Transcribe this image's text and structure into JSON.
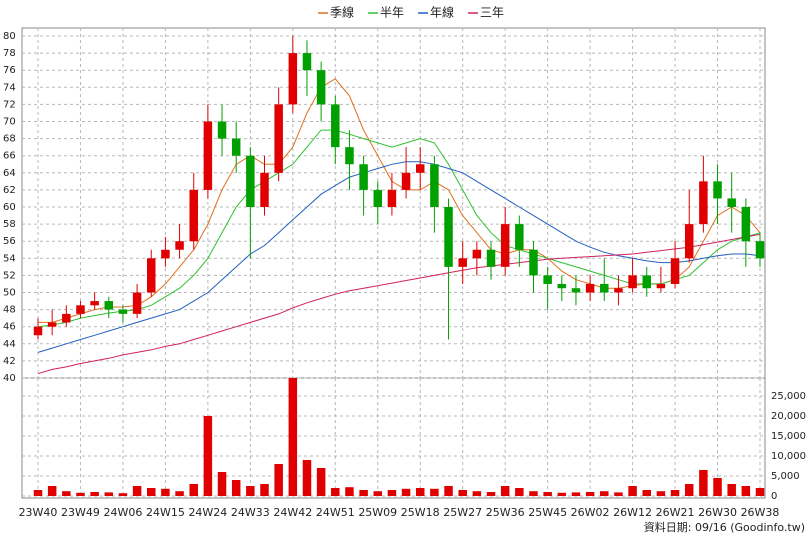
{
  "chart_data": [
    {
      "type": "candlestick",
      "legend": "top",
      "grid": true,
      "up_color": "#e00000",
      "down_color": "#00a000",
      "open": [
        45,
        46,
        46.5,
        47.5,
        48.5,
        49,
        48,
        47.5,
        50,
        54,
        55,
        56,
        62,
        70,
        68,
        66,
        60,
        64,
        72,
        78,
        76,
        72,
        67,
        65,
        62,
        60,
        62,
        64,
        65,
        60,
        53,
        54,
        55,
        53,
        58,
        55,
        52,
        51,
        50.5,
        50,
        51,
        50,
        50.5,
        52,
        50.5,
        51,
        54,
        58,
        63,
        61,
        60,
        56
      ],
      "high": [
        47,
        48,
        48.5,
        49,
        50,
        49.5,
        48.5,
        51,
        55,
        56.5,
        58,
        64,
        72,
        72,
        70,
        67,
        66,
        74,
        80,
        79.5,
        77,
        73,
        69,
        66,
        63,
        64,
        67,
        67,
        66,
        61,
        56,
        56,
        56,
        60,
        59,
        56,
        53,
        52,
        52,
        52,
        54,
        52,
        54,
        53,
        53,
        56,
        62,
        66,
        65,
        64,
        61,
        57
      ],
      "low": [
        44.5,
        45,
        46,
        47,
        48,
        47,
        46.5,
        47,
        49.5,
        53,
        54,
        55,
        61,
        66,
        64,
        54,
        59,
        63,
        71,
        73,
        70,
        65,
        62,
        59,
        58,
        59,
        61,
        62,
        57,
        44.5,
        51,
        52,
        51.5,
        52,
        53,
        50,
        48,
        49,
        48.5,
        49,
        49,
        48.5,
        50,
        49.5,
        50,
        50.5,
        53.5,
        57,
        58,
        57,
        53,
        53
      ],
      "close": [
        46,
        46.5,
        47.5,
        48.5,
        49,
        48,
        47.5,
        50,
        54,
        55,
        56,
        62,
        70,
        68,
        66,
        60,
        64,
        72,
        78,
        76,
        72,
        67,
        65,
        62,
        60,
        62,
        64,
        65,
        60,
        53,
        54,
        55,
        53,
        58,
        55,
        52,
        51,
        50.5,
        50,
        51,
        50,
        50.5,
        52,
        50.5,
        51,
        54,
        58,
        63,
        61,
        60,
        56,
        54
      ],
      "series": [
        {
          "name": "季線",
          "color": "#e07020",
          "values": [
            46.5,
            46.5,
            47,
            47.5,
            48,
            48.3,
            48.3,
            48.5,
            49.5,
            51,
            53,
            55,
            58,
            62,
            65,
            66,
            65,
            65,
            67,
            71,
            74,
            75,
            73,
            69,
            66,
            63,
            62,
            62,
            63,
            62,
            59,
            57,
            55,
            54.5,
            55,
            55,
            54,
            52.5,
            51.5,
            51,
            50.5,
            50.5,
            50.8,
            51,
            51,
            51.5,
            53,
            56,
            59,
            60,
            59,
            57
          ]
        },
        {
          "name": "半年",
          "color": "#30c030",
          "values": [
            46,
            46.2,
            46.5,
            47,
            47.3,
            47.6,
            47.8,
            48,
            48.5,
            49.5,
            50.5,
            52,
            54,
            57,
            60,
            62,
            63,
            64,
            65,
            67,
            69,
            69,
            68.5,
            68,
            67.5,
            67,
            67.5,
            68,
            67.5,
            65,
            62,
            59,
            57,
            55.5,
            55,
            54.5,
            54,
            53.5,
            53,
            52.5,
            52,
            51.5,
            51,
            51,
            51,
            51.5,
            52,
            53.5,
            55,
            56,
            56.5,
            57
          ]
        },
        {
          "name": "年線",
          "color": "#2060c0",
          "values": [
            43,
            43.5,
            44,
            44.5,
            45,
            45.5,
            46,
            46.5,
            47,
            47.5,
            48,
            49,
            50,
            51.5,
            53,
            54.5,
            55.5,
            57,
            58.5,
            60,
            61.5,
            62.5,
            63.5,
            64,
            64.5,
            65,
            65.3,
            65.3,
            65,
            64.5,
            64,
            63,
            62,
            61,
            60,
            59,
            58,
            57,
            56,
            55.3,
            54.7,
            54.3,
            54,
            53.7,
            53.5,
            53.5,
            53.7,
            54,
            54.3,
            54.5,
            54.5,
            54.3
          ]
        },
        {
          "name": "三年",
          "color": "#d02060",
          "values": [
            40.5,
            41,
            41.3,
            41.7,
            42,
            42.3,
            42.7,
            43,
            43.3,
            43.7,
            44,
            44.5,
            45,
            45.5,
            46,
            46.5,
            47,
            47.5,
            48.2,
            48.8,
            49.3,
            49.8,
            50.2,
            50.5,
            50.8,
            51.1,
            51.4,
            51.7,
            52,
            52.3,
            52.6,
            52.9,
            53.1,
            53.3,
            53.5,
            53.7,
            53.9,
            54,
            54.1,
            54.2,
            54.3,
            54.4,
            54.5,
            54.7,
            54.9,
            55.1,
            55.3,
            55.6,
            55.9,
            56.2,
            56.5,
            56.8
          ]
        }
      ],
      "ylim": [
        40,
        80
      ],
      "yticks": [
        40,
        42,
        44,
        46,
        48,
        50,
        52,
        54,
        56,
        58,
        60,
        62,
        64,
        66,
        68,
        70,
        72,
        74,
        76,
        78,
        80
      ]
    },
    {
      "type": "bar",
      "color": "#e00000",
      "grid": true,
      "categories": [
        "23W40",
        null,
        null,
        "23W49",
        null,
        null,
        "24W06",
        null,
        null,
        "24W15",
        null,
        null,
        "24W24",
        null,
        null,
        "24W33",
        null,
        null,
        "24W42",
        null,
        null,
        "24W51",
        null,
        null,
        "25W09",
        null,
        null,
        "25W18",
        null,
        null,
        "25W27",
        null,
        null,
        "25W36",
        null,
        null,
        "25W45",
        null,
        null,
        "26W02",
        null,
        null,
        "26W12",
        null,
        null,
        "26W21",
        null,
        null,
        "26W30",
        null,
        null,
        "26W38"
      ],
      "values": [
        1500,
        2500,
        1200,
        800,
        1000,
        900,
        700,
        2500,
        2000,
        1800,
        1200,
        3000,
        20000,
        6000,
        4000,
        2500,
        3000,
        8000,
        29500,
        9000,
        7000,
        2000,
        2200,
        1500,
        1200,
        1500,
        1800,
        2000,
        1800,
        2500,
        1500,
        1200,
        1000,
        2500,
        2000,
        1200,
        1000,
        800,
        900,
        1000,
        1200,
        900,
        2500,
        1500,
        1200,
        1500,
        3000,
        6500,
        4500,
        3000,
        2500,
        2000
      ],
      "ylim": [
        0,
        30000
      ],
      "yticks": [
        0,
        {
          "value": 5000,
          "label": "5,000"
        },
        {
          "value": 10000,
          "label": "10,000"
        },
        {
          "value": 15000,
          "label": "15,000"
        },
        {
          "value": 20000,
          "label": "20,000"
        },
        {
          "value": 25000,
          "label": "25,000"
        }
      ],
      "note": "資料日期: 09/16 (Goodinfo.tw)"
    }
  ]
}
